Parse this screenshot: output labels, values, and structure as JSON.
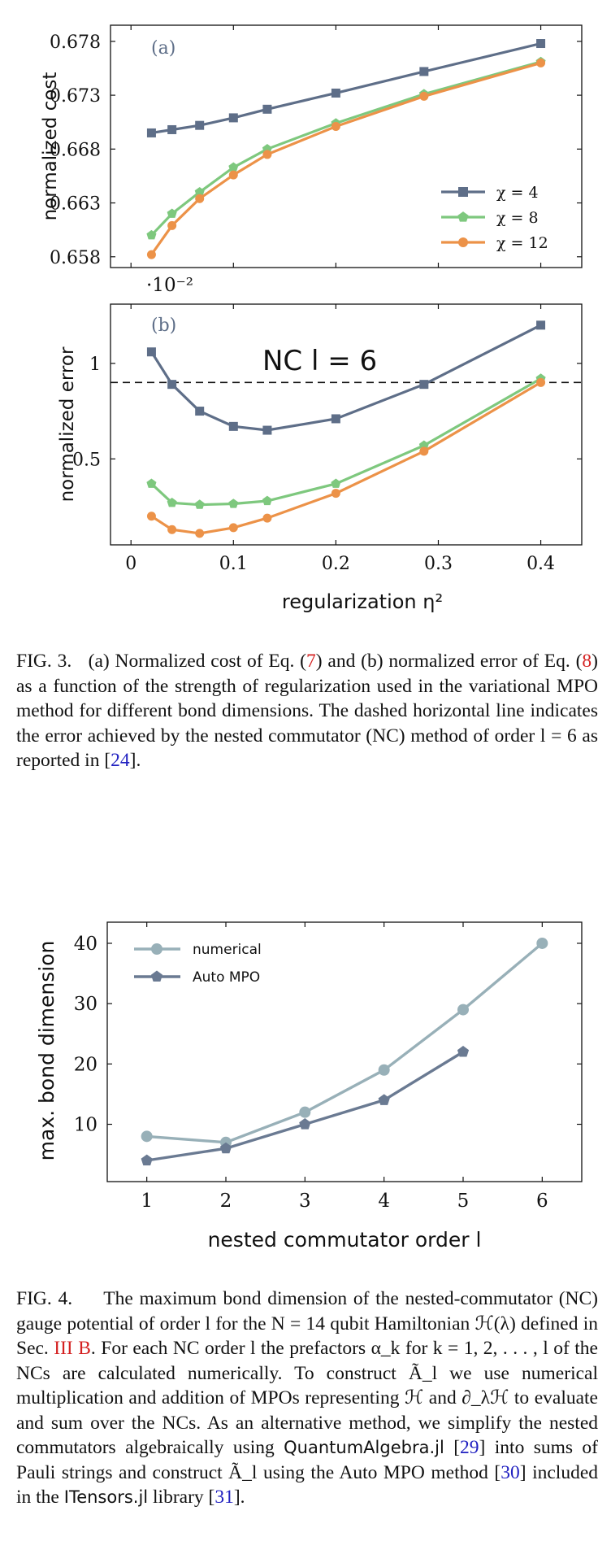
{
  "fig3": {
    "panel_a_label": "(a)",
    "panel_b_label": "(b)",
    "ylabel_a": "normalized cost",
    "ylabel_b": "normalized error",
    "xlabel": "regularization η²",
    "scale_note": "·10⁻²",
    "nc_annotation": "NC l = 6",
    "caption": {
      "prefix": "FIG. 3.",
      "p1": "(a) Normalized cost of Eq. (",
      "eq7": "7",
      "p2": ") and (b) normalized error of Eq. (",
      "eq8": "8",
      "p3": ") as a function of the strength of regularization used in the variational MPO method for different bond dimensions. The dashed horizontal line indicates the error achieved by the nested commutator (NC) method of order l = 6 as reported in [",
      "ref24": "24",
      "p4": "]."
    }
  },
  "fig4": {
    "ylabel": "max. bond dimension",
    "xlabel": "nested commutator order l",
    "caption": {
      "prefix": "FIG. 4.",
      "p1": "The maximum bond dimension of the nested-commutator (NC) gauge potential of order l for the N = 14 qubit Hamiltonian ℋ(λ) defined in Sec. ",
      "sec": "III B",
      "p2": ". For each NC order l the prefactors α_k for k = 1, 2, . . . , l of the NCs are calculated numerically. To construct Ã_l we use numerical multiplication and addition of MPOs representing ℋ and ∂_λℋ to evaluate and sum over the NCs. As an alternative method, we simplify the nested commutators algebraically using ",
      "qa": "QuantumAlgebra.jl",
      "p3": " [",
      "ref29": "29",
      "p4": "] into sums of Pauli strings and construct Ã_l using the Auto MPO method [",
      "ref30": "30",
      "p5": "] included in the ",
      "it": "ITensors.jl",
      "p6": " library [",
      "ref31": "31",
      "p7": "]."
    }
  },
  "colors": {
    "chi4": "#5e6e88",
    "chi8": "#7ec87e",
    "chi12": "#ec9248",
    "numerical": "#98b0b8",
    "automp": "#6a7a92",
    "ref": "#2020c0",
    "red": "#d42020"
  },
  "chart_data": [
    {
      "type": "line",
      "title": "",
      "xlabel": "regularization η²",
      "ylabel": "normalized cost",
      "xlim": [
        -0.02,
        0.44
      ],
      "ylim": [
        0.657,
        0.6795
      ],
      "xticks": [
        0,
        0.1,
        0.2,
        0.3,
        0.4
      ],
      "yticks": [
        0.658,
        0.663,
        0.668,
        0.673,
        0.678
      ],
      "ytick_labels": [
        "0.658",
        "0.663",
        "0.668",
        "0.673",
        "0.678"
      ],
      "legend_position": "bottom-right",
      "x": [
        0.02,
        0.04,
        0.067,
        0.1,
        0.133,
        0.2,
        0.286,
        0.4
      ],
      "series": [
        {
          "name": "χ = 4",
          "marker": "square",
          "values": [
            0.6695,
            0.6698,
            0.6702,
            0.6709,
            0.6717,
            0.6732,
            0.6752,
            0.6778
          ]
        },
        {
          "name": "χ = 8",
          "marker": "pentagon",
          "values": [
            0.66,
            0.662,
            0.664,
            0.6663,
            0.668,
            0.6704,
            0.6731,
            0.6761
          ]
        },
        {
          "name": "χ = 12",
          "marker": "circle",
          "values": [
            0.6582,
            0.6609,
            0.6634,
            0.6656,
            0.6675,
            0.6701,
            0.6729,
            0.676
          ]
        }
      ]
    },
    {
      "type": "line",
      "title": "",
      "xlabel": "regularization η²",
      "ylabel": "normalized error",
      "scale_factor": "·10⁻²",
      "xlim": [
        -0.02,
        0.44
      ],
      "ylim": [
        0.05,
        1.31
      ],
      "xticks": [
        0,
        0.1,
        0.2,
        0.3,
        0.4
      ],
      "xtick_labels": [
        "0",
        "0.1",
        "0.2",
        "0.3",
        "0.4"
      ],
      "yticks": [
        0.5,
        1
      ],
      "ytick_labels": [
        "0.5",
        "1"
      ],
      "reference_line": {
        "y": 0.9,
        "label": "NC l = 6",
        "style": "dashed"
      },
      "x": [
        0.02,
        0.04,
        0.067,
        0.1,
        0.133,
        0.2,
        0.286,
        0.4
      ],
      "series": [
        {
          "name": "χ = 4",
          "marker": "square",
          "values": [
            1.06,
            0.89,
            0.75,
            0.67,
            0.65,
            0.71,
            0.89,
            1.2
          ]
        },
        {
          "name": "χ = 8",
          "marker": "pentagon",
          "values": [
            0.37,
            0.27,
            0.26,
            0.265,
            0.28,
            0.37,
            0.57,
            0.92
          ]
        },
        {
          "name": "χ = 12",
          "marker": "circle",
          "values": [
            0.2,
            0.13,
            0.11,
            0.14,
            0.19,
            0.32,
            0.54,
            0.9
          ]
        }
      ]
    },
    {
      "type": "line",
      "title": "",
      "xlabel": "nested commutator order l",
      "ylabel": "max. bond dimension",
      "xlim": [
        0.5,
        6.5
      ],
      "ylim": [
        0.5,
        43.5
      ],
      "xticks": [
        1,
        2,
        3,
        4,
        5,
        6
      ],
      "yticks": [
        10,
        20,
        30,
        40
      ],
      "legend_position": "top-left",
      "series": [
        {
          "name": "numerical",
          "marker": "circle",
          "x": [
            1,
            2,
            3,
            4,
            5,
            6
          ],
          "values": [
            8,
            7,
            12,
            19,
            29,
            40
          ]
        },
        {
          "name": "Auto MPO",
          "marker": "pentagon",
          "x": [
            1,
            2,
            3,
            4,
            5
          ],
          "values": [
            4,
            6,
            10,
            14,
            22
          ]
        }
      ]
    }
  ]
}
